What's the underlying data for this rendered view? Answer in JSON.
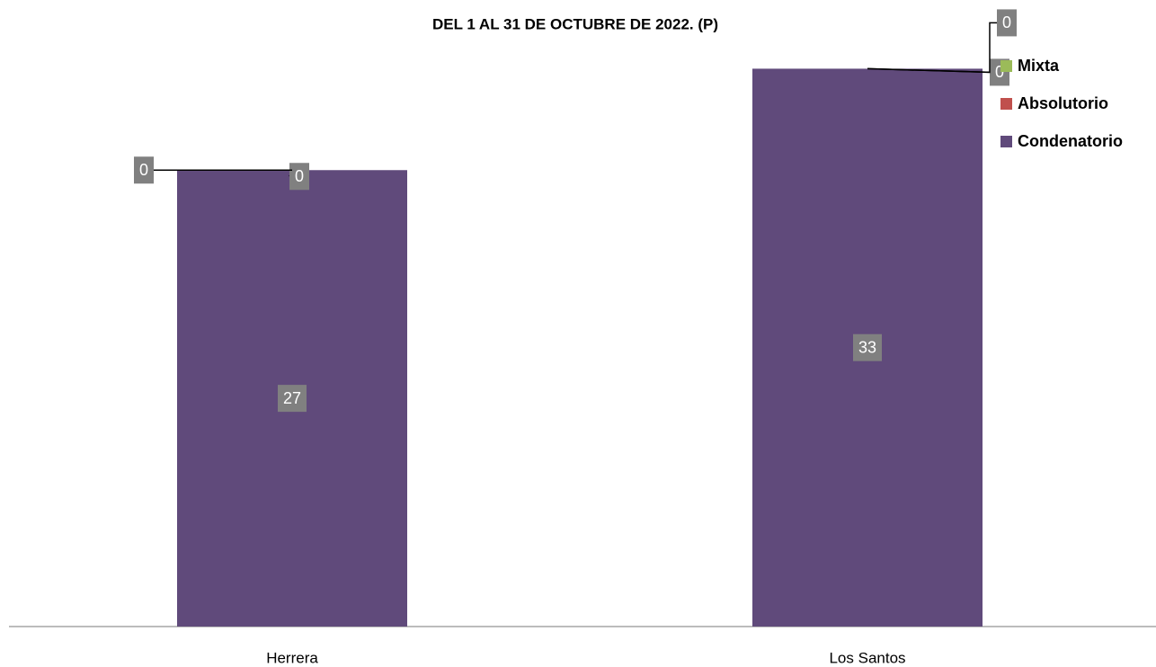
{
  "chart_data": {
    "type": "stacked_bar",
    "title": "DEL 1 AL 31 DE OCTUBRE DE 2022. (P)",
    "categories": [
      "Herrera",
      "Los Santos"
    ],
    "series": [
      {
        "name": "Condenatorio",
        "color": "#604a7b",
        "values": [
          27,
          33
        ]
      },
      {
        "name": "Absolutorio",
        "color": "#c0504d",
        "values": [
          0,
          0
        ]
      },
      {
        "name": "Mixta",
        "color": "#9bbb59",
        "values": [
          0,
          0
        ]
      }
    ],
    "ylim": [
      0,
      36
    ]
  }
}
